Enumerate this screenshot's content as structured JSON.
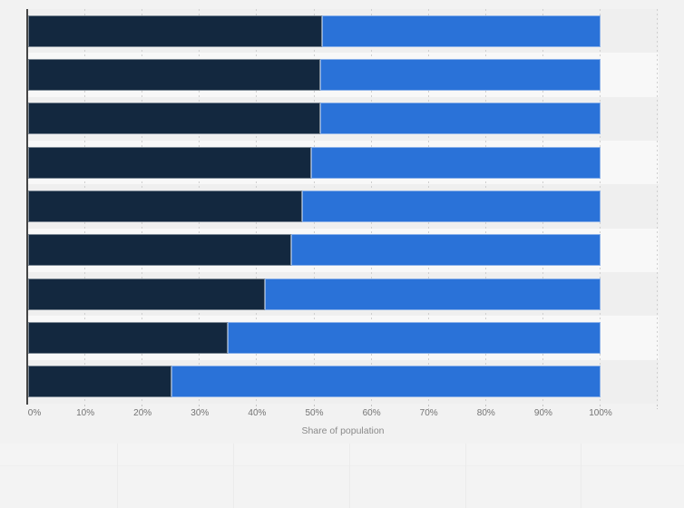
{
  "colors": {
    "page_bg": "#f2f2f2",
    "band_odd": "#efefef",
    "band_even": "#f8f8f8",
    "series_dark": "#13283f",
    "series_blue": "#2a72d8",
    "axis_line": "#454545",
    "gridline": "#cfcfcf",
    "tick_label": "#737373",
    "axis_title": "#8a8a8a"
  },
  "chart_data": {
    "type": "bar",
    "subtype": "horizontal-stacked-100",
    "title": "",
    "xlabel": "Share of population",
    "ylabel": "",
    "categories": [
      "",
      "",
      "",
      "",
      "",
      "",
      "",
      "",
      ""
    ],
    "series": [
      {
        "name": "segment-dark-navy",
        "color": "#13283f",
        "values": [
          51.4,
          51.1,
          51.1,
          49.4,
          47.9,
          45.9,
          41.3,
          34.9,
          25.1
        ]
      },
      {
        "name": "segment-blue",
        "color": "#2a72d8",
        "values": [
          48.6,
          48.9,
          48.9,
          50.6,
          52.1,
          54.1,
          58.7,
          65.1,
          74.9
        ]
      }
    ],
    "x_ticks": [
      {
        "value": 0,
        "label": "0%"
      },
      {
        "value": 10,
        "label": "10%"
      },
      {
        "value": 20,
        "label": "20%"
      },
      {
        "value": 30,
        "label": "30%"
      },
      {
        "value": 40,
        "label": "40%"
      },
      {
        "value": 50,
        "label": "50%"
      },
      {
        "value": 60,
        "label": "60%"
      },
      {
        "value": 70,
        "label": "70%"
      },
      {
        "value": 80,
        "label": "80%"
      },
      {
        "value": 90,
        "label": "90%"
      },
      {
        "value": 100,
        "label": "100%"
      }
    ],
    "xlim": [
      0,
      110
    ],
    "grid": "vertical-dotted",
    "legend_position": "none",
    "alternating_row_bands": true
  }
}
